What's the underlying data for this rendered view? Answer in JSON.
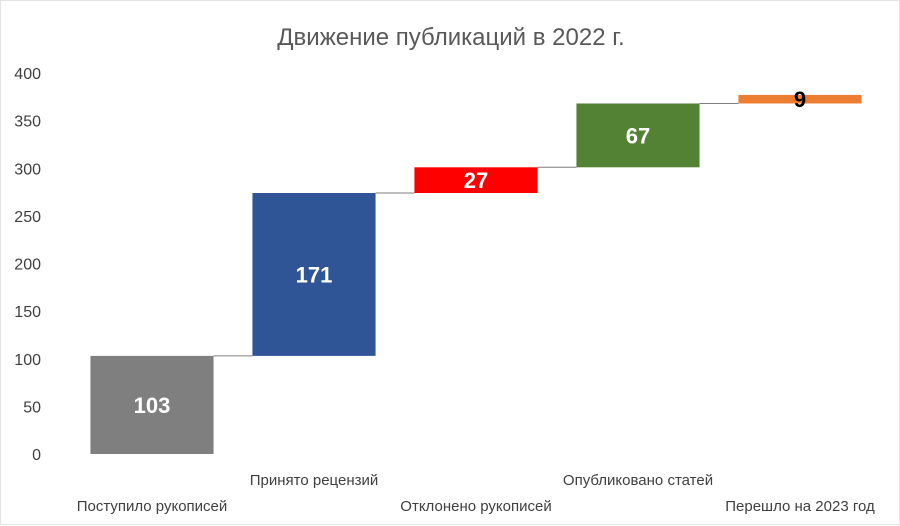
{
  "chart_data": {
    "type": "bar",
    "subtype": "waterfall",
    "title": "Движение публикаций в 2022 г.",
    "xlabel": "",
    "ylabel": "",
    "ylim": [
      0,
      400
    ],
    "yticks": [
      0,
      50,
      100,
      150,
      200,
      250,
      300,
      350,
      400
    ],
    "grid": false,
    "legend": "none",
    "categories": [
      "Поступило рукописей",
      "Принято рецензий",
      "Отклонено рукописей",
      "Опубликовано статей",
      "Перешло на 2023 год"
    ],
    "values": [
      103,
      171,
      27,
      67,
      9
    ],
    "bases": [
      0,
      103,
      274,
      301,
      368
    ],
    "colors": [
      "#7f7f7f",
      "#2f5597",
      "#ff0000",
      "#548235",
      "#ed7d31"
    ],
    "label_colors": [
      "#ffffff",
      "#ffffff",
      "#ffffff",
      "#ffffff",
      "#000000"
    ],
    "connector_color": "#7f7f7f"
  }
}
